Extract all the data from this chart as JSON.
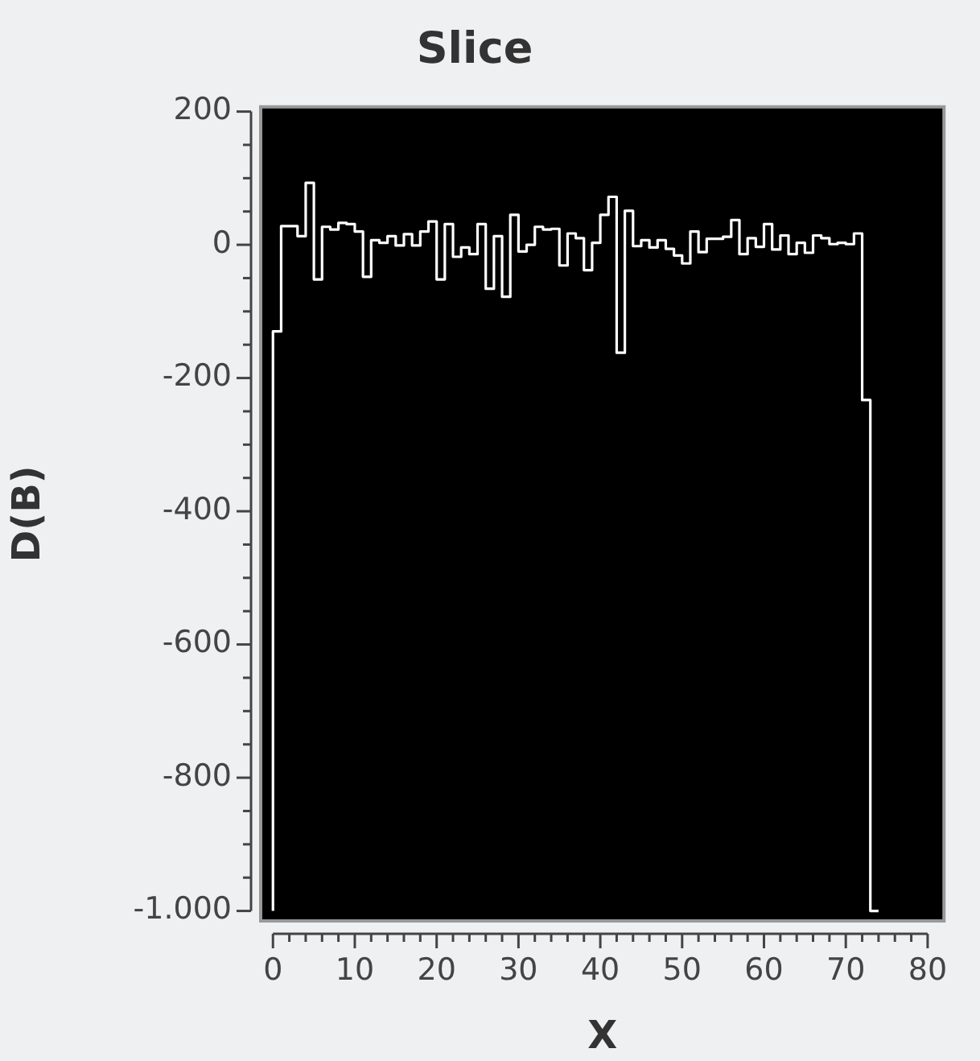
{
  "chart_data": {
    "type": "step",
    "title": "Slice",
    "xlabel": "X",
    "ylabel": "D(B)",
    "x": [
      0,
      1,
      2,
      3,
      4,
      5,
      6,
      7,
      8,
      9,
      10,
      11,
      12,
      13,
      14,
      15,
      16,
      17,
      18,
      19,
      20,
      21,
      22,
      23,
      24,
      25,
      26,
      27,
      28,
      29,
      30,
      31,
      32,
      33,
      34,
      35,
      36,
      37,
      38,
      39,
      40,
      41,
      42,
      43,
      44,
      45,
      46,
      47,
      48,
      49,
      50,
      51,
      52,
      53,
      54,
      55,
      56,
      57,
      58,
      59,
      60,
      61,
      62,
      63,
      64,
      65,
      66,
      67,
      68,
      69,
      70,
      71,
      72,
      73,
      74
    ],
    "series": [
      {
        "color": "#ffffff",
        "values": [
          -1000,
          -130,
          28,
          28,
          13,
          93,
          -52,
          27,
          23,
          33,
          31,
          20,
          -48,
          7,
          3,
          13,
          -1,
          16,
          -1,
          20,
          35,
          -52,
          31,
          -18,
          -4,
          -14,
          31,
          -66,
          13,
          -78,
          45,
          -10,
          0,
          27,
          23,
          24,
          -31,
          17,
          10,
          -38,
          3,
          45,
          72,
          -162,
          51,
          -2,
          7,
          -4,
          7,
          -6,
          -16,
          -28,
          20,
          -11,
          9,
          9,
          12,
          37,
          -14,
          10,
          -3,
          31,
          -7,
          14,
          -14,
          3,
          -12,
          14,
          10,
          1,
          3,
          1,
          17,
          -233,
          -1000
        ]
      }
    ],
    "xlim": [
      -1.5,
      82
    ],
    "ylim": [
      -1015,
      207
    ],
    "xticks": [
      0,
      {
        "value": 2,
        "label": null
      },
      {
        "value": 4,
        "label": null
      },
      {
        "value": 6,
        "label": null
      },
      {
        "value": 8,
        "label": null
      },
      10,
      {
        "value": 12,
        "label": null
      },
      {
        "value": 14,
        "label": null
      },
      {
        "value": 16,
        "label": null
      },
      {
        "value": 18,
        "label": null
      },
      20,
      {
        "value": 22,
        "label": null
      },
      {
        "value": 24,
        "label": null
      },
      {
        "value": 26,
        "label": null
      },
      {
        "value": 28,
        "label": null
      },
      30,
      {
        "value": 32,
        "label": null
      },
      {
        "value": 34,
        "label": null
      },
      {
        "value": 36,
        "label": null
      },
      {
        "value": 38,
        "label": null
      },
      40,
      {
        "value": 42,
        "label": null
      },
      {
        "value": 44,
        "label": null
      },
      {
        "value": 46,
        "label": null
      },
      {
        "value": 48,
        "label": null
      },
      50,
      {
        "value": 52,
        "label": null
      },
      {
        "value": 54,
        "label": null
      },
      {
        "value": 56,
        "label": null
      },
      {
        "value": 58,
        "label": null
      },
      60,
      {
        "value": 62,
        "label": null
      },
      {
        "value": 64,
        "label": null
      },
      {
        "value": 66,
        "label": null
      },
      {
        "value": 68,
        "label": null
      },
      70,
      {
        "value": 72,
        "label": null
      },
      {
        "value": 74,
        "label": null
      },
      {
        "value": 76,
        "label": null
      },
      {
        "value": 78,
        "label": null
      },
      80
    ],
    "yticks": [
      200,
      {
        "value": 150,
        "label": null
      },
      {
        "value": 100,
        "label": null
      },
      {
        "value": 50,
        "label": null
      },
      0,
      {
        "value": -50,
        "label": null
      },
      {
        "value": -100,
        "label": null
      },
      {
        "value": -150,
        "label": null
      },
      -200,
      {
        "value": -250,
        "label": null
      },
      {
        "value": -300,
        "label": null
      },
      {
        "value": -350,
        "label": null
      },
      -400,
      {
        "value": -450,
        "label": null
      },
      {
        "value": -500,
        "label": null
      },
      {
        "value": -550,
        "label": null
      },
      -600,
      {
        "value": -650,
        "label": null
      },
      {
        "value": -700,
        "label": null
      },
      {
        "value": -750,
        "label": null
      },
      -800,
      {
        "value": -850,
        "label": null
      },
      {
        "value": -900,
        "label": null
      },
      {
        "value": -950,
        "label": null
      },
      {
        "value": -1000,
        "label": "-1.000"
      }
    ],
    "grid": false,
    "legend": false,
    "marker": "none",
    "line_style": "solid"
  }
}
